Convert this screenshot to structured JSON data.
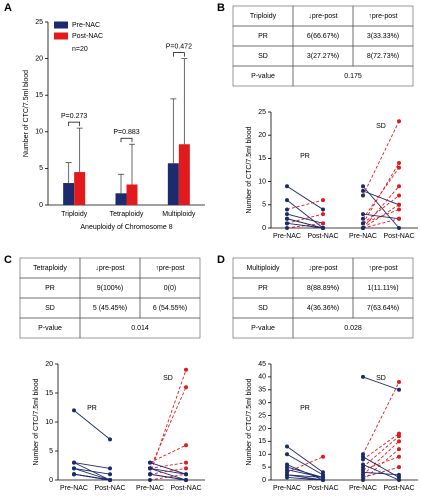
{
  "chart_data": [
    {
      "panel": "A",
      "type": "grouped_bar",
      "y_label": "Number of CTC/7.5ml blood",
      "x_label": "Aneuploidy of Chromosome 8",
      "categories": [
        "Triploidy",
        "Tetraploidy",
        "Multiploidy"
      ],
      "series": [
        {
          "name": "Pre-NAC",
          "color": "#1c2a6e",
          "values": [
            3.0,
            1.6,
            5.7
          ],
          "errors": [
            2.8,
            2.6,
            8.8
          ]
        },
        {
          "name": "Post-NAC",
          "color": "#e31a1c",
          "values": [
            4.5,
            2.8,
            8.3
          ],
          "errors": [
            6.0,
            5.5,
            11.7
          ]
        }
      ],
      "p_values": [
        "P=0.273",
        "P=0.883",
        "P=0.472"
      ],
      "note": "n=20",
      "ylim": [
        0,
        25
      ],
      "yticks": [
        0,
        5,
        10,
        15,
        20,
        25
      ]
    },
    {
      "panel": "B",
      "type": "paired",
      "table": {
        "header": [
          "Triploidy",
          "↓pre-post",
          "↑pre-post"
        ],
        "rows": [
          [
            "PR",
            "6(66.67%)",
            "3(33.33%)"
          ],
          [
            "SD",
            "3(27.27%)",
            "8(72.73%)"
          ]
        ],
        "p_row": [
          "P-value",
          "0.175"
        ]
      },
      "y_label": "Number of CTC/7.5ml blood",
      "categories": [
        "Pre-NAC",
        "Post-NAC",
        "Pre-NAC",
        "Post-NAC"
      ],
      "groups": [
        {
          "label": "PR",
          "pre": [
            9,
            6,
            4,
            2,
            1,
            3,
            0,
            1,
            2
          ],
          "post": [
            4,
            0,
            6,
            0,
            3,
            1,
            1,
            0,
            0
          ]
        },
        {
          "label": "SD",
          "pre": [
            9,
            8,
            7,
            1,
            2,
            0,
            1,
            0,
            3,
            0,
            1
          ],
          "post": [
            0,
            5,
            23,
            14,
            13,
            9,
            7,
            5,
            2,
            2,
            4
          ]
        }
      ],
      "decrease_color": "#1c2a6e",
      "increase_color": "#e31a1c",
      "ylim": [
        0,
        25
      ],
      "yticks": [
        0,
        5,
        10,
        15,
        20,
        25
      ]
    },
    {
      "panel": "C",
      "type": "paired",
      "table": {
        "header": [
          "Tetraploidy",
          "↓pre-post",
          "↑pre-post"
        ],
        "rows": [
          [
            "PR",
            "9(100%)",
            "0(0)"
          ],
          [
            "SD",
            "5 (45.45%)",
            "6 (54.55%)"
          ]
        ],
        "p_row": [
          "P-value",
          "0.014"
        ]
      },
      "y_label": "Number of CTC/7.5ml blood",
      "categories": [
        "Pre-NAC",
        "Post-NAC",
        "Pre-NAC",
        "Post-NAC"
      ],
      "groups": [
        {
          "label": "PR",
          "pre": [
            12,
            3,
            2,
            3,
            1,
            1,
            2,
            1,
            1
          ],
          "post": [
            7,
            2,
            0,
            0,
            0,
            0,
            1,
            0,
            0
          ]
        },
        {
          "label": "SD",
          "pre": [
            1,
            2,
            3,
            2,
            0,
            1,
            2,
            3,
            1,
            2,
            1
          ],
          "post": [
            19,
            16,
            6,
            3,
            1,
            0,
            0,
            1,
            0,
            1,
            2
          ]
        }
      ],
      "decrease_color": "#1c2a6e",
      "increase_color": "#e31a1c",
      "ylim": [
        0,
        20
      ],
      "yticks": [
        0,
        5,
        10,
        15,
        20
      ]
    },
    {
      "panel": "D",
      "type": "paired",
      "table": {
        "header": [
          "Multiploidy",
          "↓pre-post",
          "↑pre-post"
        ],
        "rows": [
          [
            "PR",
            "8(88.89%)",
            "1(11.11%)"
          ],
          [
            "SD",
            "4(36.36%)",
            "7(63.64%)"
          ]
        ],
        "p_row": [
          "P-value",
          "0.028"
        ]
      },
      "y_label": "Number of CTC/7.5ml blood",
      "categories": [
        "Pre-NAC",
        "Post-NAC",
        "Pre-NAC",
        "Post-NAC"
      ],
      "groups": [
        {
          "label": "PR",
          "pre": [
            13,
            10,
            6,
            5,
            3,
            2,
            4,
            1,
            2
          ],
          "post": [
            3,
            2,
            0,
            1,
            9,
            0,
            1,
            0,
            1
          ]
        },
        {
          "label": "SD",
          "pre": [
            40,
            10,
            8,
            5,
            2,
            0,
            9,
            1,
            6,
            3,
            4
          ],
          "post": [
            35,
            38,
            18,
            17,
            15,
            12,
            1,
            5,
            0,
            2,
            9
          ]
        }
      ],
      "decrease_color": "#1c2a6e",
      "increase_color": "#e31a1c",
      "ylim": [
        0,
        45
      ],
      "yticks": [
        0,
        5,
        10,
        15,
        20,
        25,
        30,
        35,
        40,
        45
      ]
    }
  ]
}
